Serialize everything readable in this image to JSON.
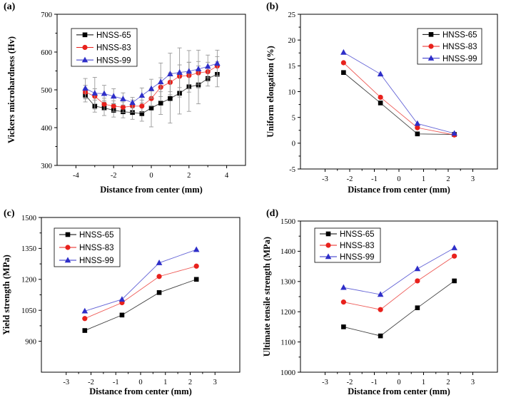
{
  "colors": {
    "HNSS-65": "#000000",
    "HNSS-83": "#e8211c",
    "HNSS-99": "#2e2ec8"
  },
  "chart_data": [
    {
      "panel": "(a)",
      "type": "line",
      "xlabel": "Distance from center (mm)",
      "ylabel": "Vickers microhardness (Hv)",
      "xlim": [
        -5,
        5
      ],
      "ylim": [
        300,
        700
      ],
      "xticks": [
        -4,
        -2,
        0,
        2,
        4
      ],
      "xtick_labels": [
        "-4",
        "-2",
        "0",
        "2",
        "4"
      ],
      "yticks": [
        300,
        400,
        500,
        600,
        700
      ],
      "ytick_labels": [
        "300",
        "400",
        "500",
        "600",
        "700"
      ],
      "legend": "top-left",
      "x": [
        -3.5,
        -3.0,
        -2.5,
        -2.0,
        -1.5,
        -1.0,
        -0.5,
        0.0,
        0.5,
        1.0,
        1.5,
        2.0,
        2.5,
        3.0,
        3.5
      ],
      "series": [
        {
          "name": "HNSS-65",
          "marker": "square",
          "values": [
            486,
            457,
            452,
            446,
            442,
            440,
            437,
            452,
            465,
            477,
            491,
            508,
            513,
            530,
            541
          ],
          "errors": [
            18,
            16,
            20,
            18,
            16,
            18,
            20,
            50,
            30,
            65,
            55,
            65,
            50,
            20,
            33
          ]
        },
        {
          "name": "HNSS-83",
          "marker": "circle",
          "values": [
            494,
            483,
            462,
            457,
            454,
            457,
            457,
            477,
            507,
            520,
            536,
            538,
            545,
            548,
            563
          ],
          "errors": [
            18,
            20,
            16,
            14,
            14,
            16,
            16,
            20,
            25,
            25,
            30,
            35,
            30,
            25,
            25
          ]
        },
        {
          "name": "HNSS-99",
          "marker": "triangle",
          "values": [
            504,
            491,
            490,
            483,
            476,
            466,
            485,
            503,
            521,
            542,
            546,
            549,
            555,
            562,
            570
          ],
          "errors": [
            26,
            42,
            22,
            20,
            16,
            14,
            20,
            25,
            50,
            55,
            65,
            55,
            50,
            30,
            35
          ]
        }
      ]
    },
    {
      "panel": "(b)",
      "type": "line",
      "xlabel": "Distance from center (mm)",
      "ylabel": "Uniform elongation (%)",
      "xlim": [
        -4,
        4
      ],
      "ylim": [
        -5,
        25
      ],
      "xticks": [
        -3,
        -2,
        -1,
        0,
        1,
        2,
        3
      ],
      "xtick_labels": [
        "-3",
        "-2",
        "-1",
        "0",
        "1",
        "2",
        "3"
      ],
      "yticks": [
        -5,
        0,
        5,
        10,
        15,
        20,
        25
      ],
      "ytick_labels": [
        "-5",
        "0",
        "5",
        "10",
        "15",
        "20",
        "25"
      ],
      "legend": "top-right",
      "x": [
        -2.25,
        -0.75,
        0.75,
        2.25
      ],
      "series": [
        {
          "name": "HNSS-65",
          "marker": "square",
          "values": [
            13.7,
            7.8,
            1.8,
            1.7
          ]
        },
        {
          "name": "HNSS-83",
          "marker": "circle",
          "values": [
            15.6,
            8.9,
            3.0,
            1.6
          ]
        },
        {
          "name": "HNSS-99",
          "marker": "triangle",
          "values": [
            17.6,
            13.4,
            3.8,
            1.9
          ]
        }
      ]
    },
    {
      "panel": "(c)",
      "type": "line",
      "xlabel": "Distance from center (mm)",
      "ylabel": "Yield strength (MPa)",
      "xlim": [
        -4,
        4
      ],
      "ylim": [
        750,
        1500
      ],
      "xticks": [
        -3,
        -2,
        -1,
        0,
        1,
        2,
        3
      ],
      "xtick_labels": [
        "-3",
        "-2",
        "-1",
        "0",
        "1",
        "2",
        "3"
      ],
      "yticks": [
        900,
        1050,
        1200,
        1350,
        1500
      ],
      "ytick_labels": [
        "900",
        "1050",
        "1200",
        "1350",
        "1500"
      ],
      "legend": "top-left",
      "x": [
        -2.25,
        -0.75,
        0.75,
        2.25
      ],
      "series": [
        {
          "name": "HNSS-65",
          "marker": "square",
          "values": [
            952,
            1027,
            1136,
            1200
          ]
        },
        {
          "name": "HNSS-83",
          "marker": "circle",
          "values": [
            1010,
            1087,
            1214,
            1264
          ]
        },
        {
          "name": "HNSS-99",
          "marker": "triangle",
          "values": [
            1046,
            1103,
            1280,
            1344
          ]
        }
      ]
    },
    {
      "panel": "(d)",
      "type": "line",
      "xlabel": "Distance from center (mm)",
      "ylabel": "Ultimate tensile strength (MPa)",
      "xlim": [
        -4,
        4
      ],
      "ylim": [
        1000,
        1500
      ],
      "xticks": [
        -3,
        -2,
        -1,
        0,
        1,
        2,
        3
      ],
      "xtick_labels": [
        "-3",
        "-2",
        "-1",
        "0",
        "1",
        "2",
        "3"
      ],
      "yticks": [
        1000,
        1100,
        1200,
        1300,
        1400,
        1500
      ],
      "ytick_labels": [
        "1000",
        "1100",
        "1200",
        "1300",
        "1400",
        "1500"
      ],
      "legend": "top-left",
      "x": [
        -2.25,
        -0.75,
        0.75,
        2.25
      ],
      "series": [
        {
          "name": "HNSS-65",
          "marker": "square",
          "values": [
            1150,
            1120,
            1213,
            1302
          ]
        },
        {
          "name": "HNSS-83",
          "marker": "circle",
          "values": [
            1232,
            1207,
            1302,
            1384
          ]
        },
        {
          "name": "HNSS-99",
          "marker": "triangle",
          "values": [
            1280,
            1257,
            1342,
            1411
          ]
        }
      ]
    }
  ]
}
